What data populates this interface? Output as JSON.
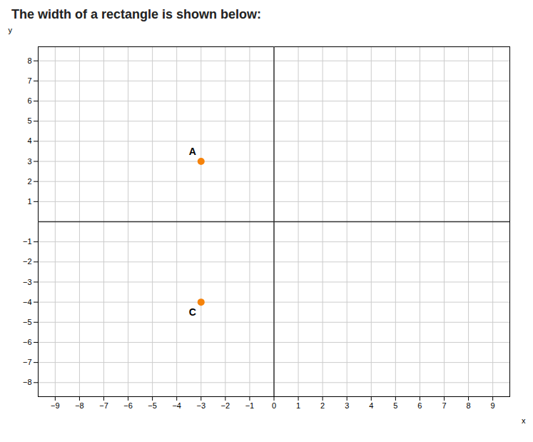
{
  "chart_data": {
    "type": "scatter",
    "title": "The width of a rectangle is shown below:",
    "x": [
      -3,
      -3
    ],
    "values": [
      3,
      -4
    ],
    "labels": [
      "A",
      "C"
    ],
    "color": "#f5820a",
    "xlabel": "x",
    "ylabel": "y",
    "xlim": [
      -9.7,
      9.7
    ],
    "ylim": [
      -8.7,
      8.7
    ],
    "xticks": [
      -9,
      -8,
      -7,
      -6,
      -5,
      -4,
      -3,
      -2,
      -1,
      0,
      1,
      2,
      3,
      4,
      5,
      6,
      7,
      8,
      9
    ],
    "yticks": [
      -8,
      -7,
      -6,
      -5,
      -4,
      -3,
      -2,
      -1,
      1,
      2,
      3,
      4,
      5,
      6,
      7,
      8
    ],
    "grid": true
  }
}
